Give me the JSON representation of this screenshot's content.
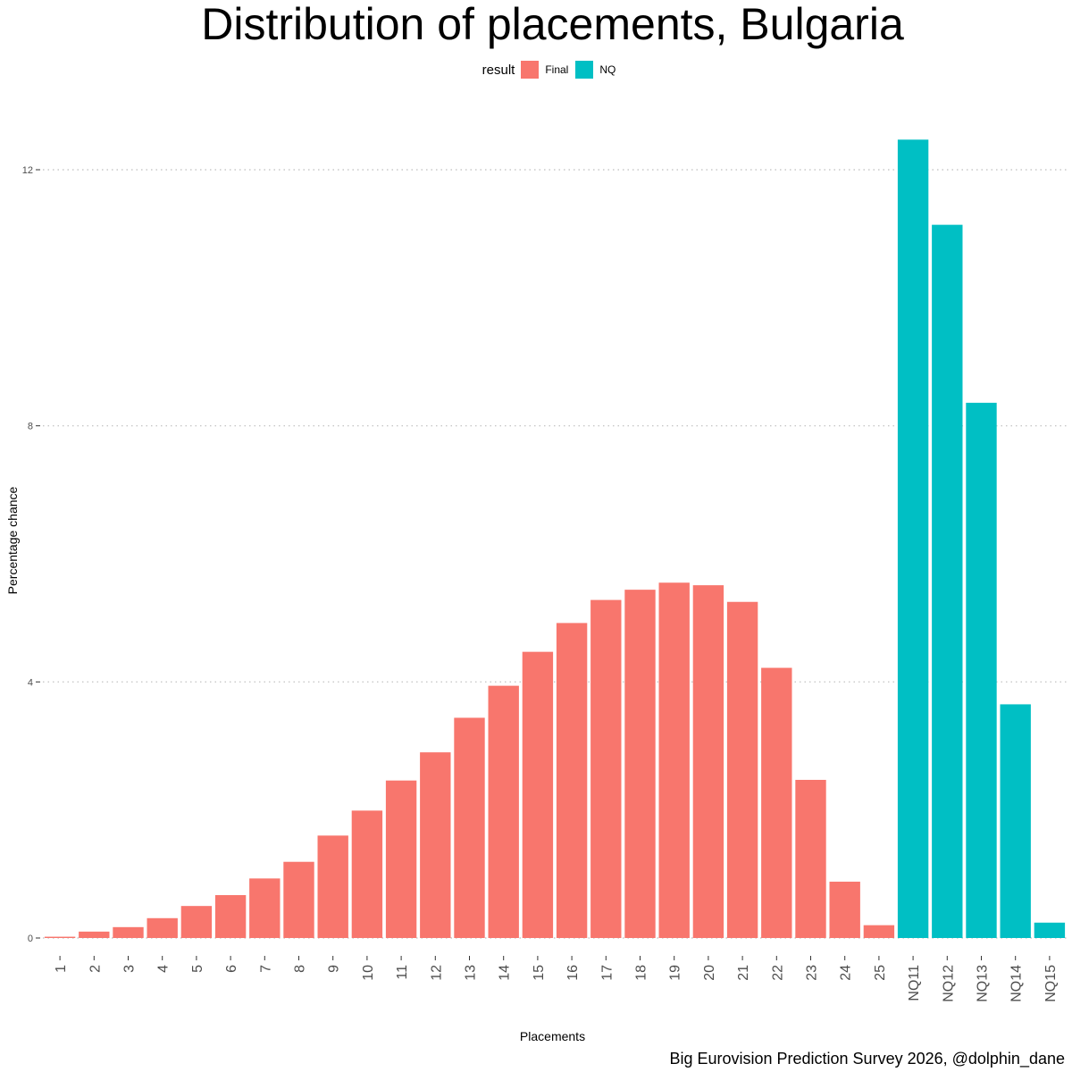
{
  "chart_data": {
    "type": "bar",
    "title": "Distribution of placements, Bulgaria",
    "xlabel": "Placements",
    "ylabel": "Percentage chance",
    "caption": "Big Eurovision Prediction Survey 2026, @dolphin_dane",
    "legend": {
      "title": "result",
      "placement": "top",
      "items": [
        {
          "label": "Final",
          "color": "#F8766D"
        },
        {
          "label": "NQ",
          "color": "#00BFC4"
        }
      ]
    },
    "ylim": [
      0,
      13.2
    ],
    "yticks": [
      0,
      4,
      8,
      12
    ],
    "grid": true,
    "categories": [
      "1",
      "2",
      "3",
      "4",
      "5",
      "6",
      "7",
      "8",
      "9",
      "10",
      "11",
      "12",
      "13",
      "14",
      "15",
      "16",
      "17",
      "18",
      "19",
      "20",
      "21",
      "22",
      "23",
      "24",
      "25",
      "NQ11",
      "NQ12",
      "NQ13",
      "NQ14",
      "NQ15"
    ],
    "values": [
      0.02,
      0.1,
      0.17,
      0.31,
      0.5,
      0.67,
      0.93,
      1.19,
      1.6,
      1.99,
      2.46,
      2.9,
      3.44,
      3.94,
      4.47,
      4.92,
      5.28,
      5.44,
      5.55,
      5.51,
      5.25,
      4.22,
      2.47,
      0.88,
      0.2,
      12.47,
      11.14,
      8.36,
      3.65,
      0.24
    ],
    "groups": [
      "Final",
      "Final",
      "Final",
      "Final",
      "Final",
      "Final",
      "Final",
      "Final",
      "Final",
      "Final",
      "Final",
      "Final",
      "Final",
      "Final",
      "Final",
      "Final",
      "Final",
      "Final",
      "Final",
      "Final",
      "Final",
      "Final",
      "Final",
      "Final",
      "Final",
      "NQ",
      "NQ",
      "NQ",
      "NQ",
      "NQ"
    ]
  }
}
